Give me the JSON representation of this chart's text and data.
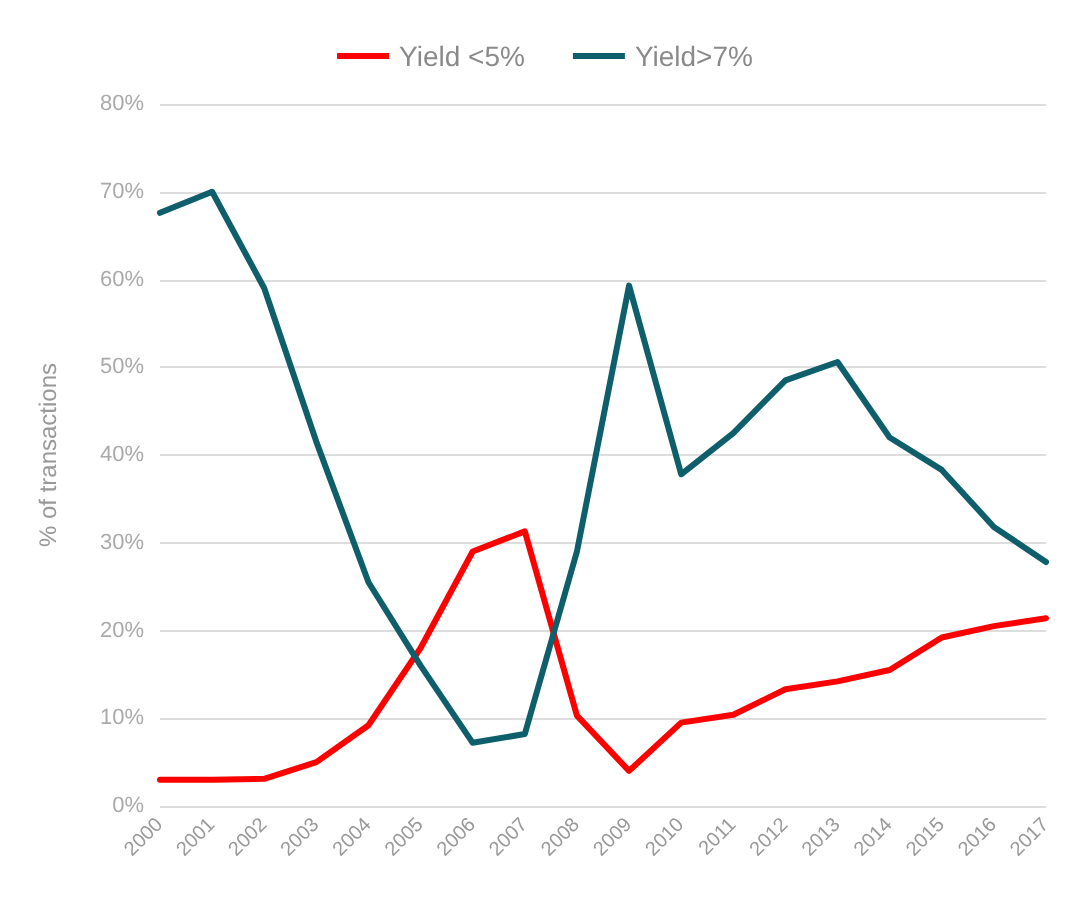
{
  "chart_data": {
    "type": "line",
    "ylabel": "% of transactions",
    "categories": [
      "2000",
      "2001",
      "2002",
      "2003",
      "2004",
      "2005",
      "2006",
      "2007",
      "2008",
      "2009",
      "2010",
      "2011",
      "2012",
      "2013",
      "2014",
      "2015",
      "2016",
      "2017"
    ],
    "series": [
      {
        "name": "Yield <5%",
        "color": "#ff0000",
        "values": [
          3,
          3,
          3.1,
          5,
          9.2,
          18,
          29,
          31.3,
          10.3,
          4,
          9.5,
          10.4,
          13.3,
          14.2,
          15.5,
          19.2,
          20.5,
          21.4
        ]
      },
      {
        "name": "Yield>7%",
        "color": "#0e5f6b",
        "values": [
          67.6,
          70,
          59,
          41.5,
          25.5,
          16,
          7.2,
          8.2,
          29,
          59.3,
          37.8,
          42.5,
          48.5,
          50.6,
          42,
          38.3,
          31.8,
          27.8
        ]
      }
    ],
    "ylim": [
      0,
      80
    ],
    "yticks": [
      {
        "value": 0,
        "label": "0%"
      },
      {
        "value": 10,
        "label": "10%"
      },
      {
        "value": 20,
        "label": "20%"
      },
      {
        "value": 30,
        "label": "30%"
      },
      {
        "value": 40,
        "label": "40%"
      },
      {
        "value": 50,
        "label": "50%"
      },
      {
        "value": 60,
        "label": "60%"
      },
      {
        "value": 70,
        "label": "70%"
      },
      {
        "value": 80,
        "label": "80%"
      }
    ],
    "grid": "y",
    "legend": "top",
    "marker": "none",
    "line_style": "solid"
  }
}
